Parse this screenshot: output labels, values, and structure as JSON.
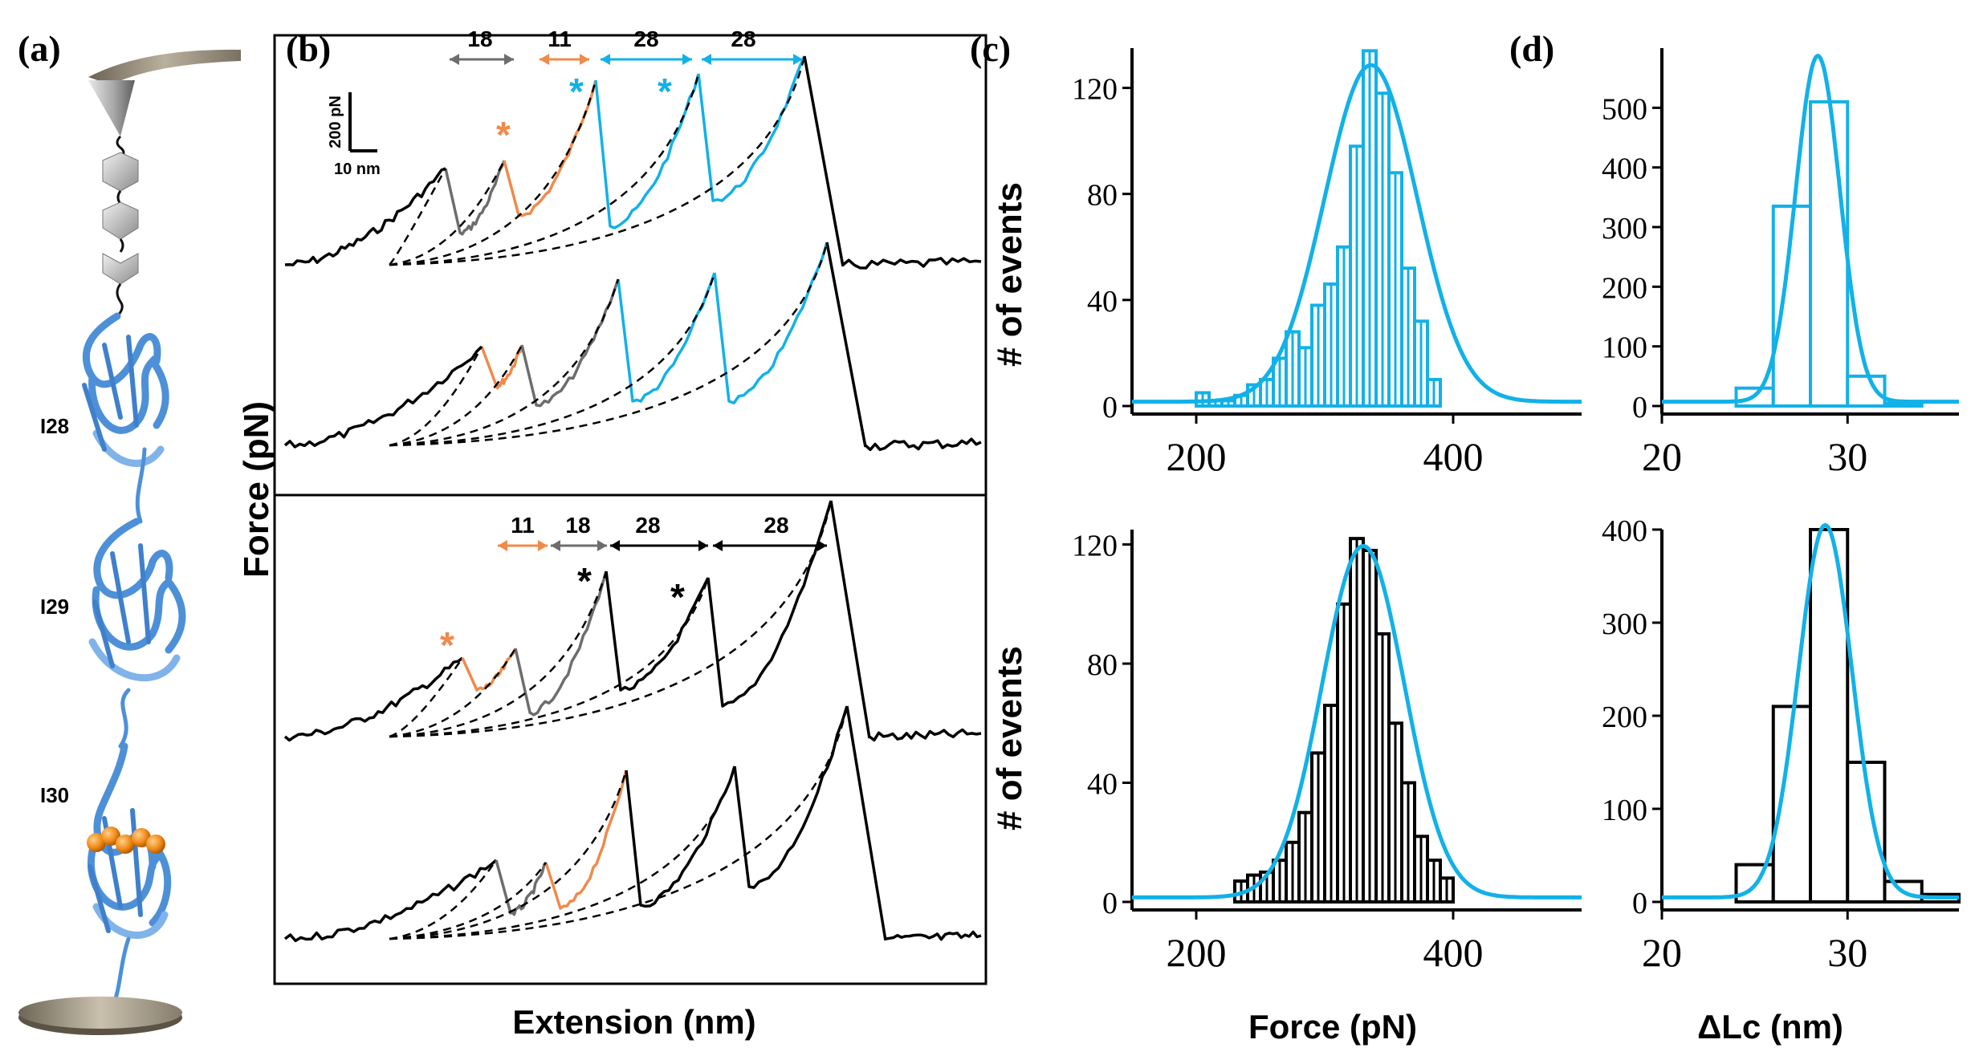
{
  "figure": {
    "panel_labels": [
      "(a)",
      "(b)",
      "(c)",
      "(d)"
    ],
    "panel_a": {
      "domains": [
        "I28",
        "I29",
        "I30"
      ]
    },
    "panel_b": {
      "y_label": "Force (pN)",
      "x_label": "Extension (nm)",
      "scale_force": "200 pN",
      "scale_length": "10 nm",
      "top_increments": [
        "18",
        "11",
        "28",
        "28"
      ],
      "bottom_increments": [
        "11",
        "18",
        "28",
        "28"
      ],
      "marker": "*",
      "colors": {
        "gray": "#6d6d6d",
        "orange": "#f08a4b",
        "blue": "#12b1e8",
        "black": "#000000"
      }
    },
    "panel_c": {
      "x_label": "Force (pN)",
      "y_label": "# of events"
    },
    "panel_d": {
      "x_label": "ΔLc (nm)"
    }
  },
  "chart_data": [
    {
      "id": "c-top",
      "type": "bar",
      "title": "",
      "xlabel": "",
      "ylabel": "# of events",
      "xlim": [
        150,
        500
      ],
      "ylim": [
        0,
        135
      ],
      "xticks": [
        200,
        400
      ],
      "yticks": [
        0,
        40,
        80,
        120
      ],
      "bin_width": 10,
      "categories": [
        205,
        215,
        225,
        235,
        245,
        255,
        265,
        275,
        285,
        295,
        305,
        315,
        325,
        335,
        345,
        355,
        365,
        375,
        385
      ],
      "values": [
        5,
        2,
        2,
        4,
        8,
        10,
        18,
        28,
        22,
        38,
        46,
        60,
        98,
        134,
        118,
        88,
        52,
        32,
        10
      ],
      "fit": {
        "kind": "gaussian",
        "peak": 127,
        "mean": 336,
        "sd": 36
      },
      "bar_color": "#12b1e8",
      "fit_color": "#12b1e8",
      "hatched": true
    },
    {
      "id": "c-bottom",
      "type": "bar",
      "title": "",
      "xlabel": "Force (pN)",
      "ylabel": "# of events",
      "xlim": [
        150,
        500
      ],
      "ylim": [
        0,
        125
      ],
      "xticks": [
        200,
        400
      ],
      "yticks": [
        0,
        40,
        80,
        120
      ],
      "bin_width": 10,
      "categories": [
        235,
        245,
        255,
        265,
        275,
        285,
        295,
        305,
        315,
        325,
        335,
        345,
        355,
        365,
        375,
        385,
        395
      ],
      "values": [
        7,
        9,
        10,
        14,
        20,
        30,
        50,
        66,
        100,
        122,
        118,
        90,
        60,
        40,
        22,
        14,
        8
      ],
      "fit": {
        "kind": "gaussian",
        "peak": 118,
        "mean": 330,
        "sd": 32
      },
      "bar_color": "#000000",
      "fit_color": "#12b1e8",
      "hatched": true
    },
    {
      "id": "d-top",
      "type": "bar",
      "title": "",
      "xlabel": "",
      "ylabel": "",
      "xlim": [
        20,
        36
      ],
      "ylim": [
        0,
        600
      ],
      "xticks": [
        20,
        30
      ],
      "yticks": [
        0,
        100,
        200,
        300,
        400,
        500
      ],
      "bin_width": 2,
      "categories": [
        25,
        27,
        29,
        31,
        33
      ],
      "values": [
        30,
        335,
        510,
        50,
        5
      ],
      "fit": {
        "kind": "gaussian",
        "peak": 580,
        "mean": 28.4,
        "sd": 1.2
      },
      "bar_color": "#12b1e8",
      "fit_color": "#12b1e8",
      "hatched": false
    },
    {
      "id": "d-bottom",
      "type": "bar",
      "title": "",
      "xlabel": "ΔLc (nm)",
      "ylabel": "",
      "xlim": [
        20,
        36
      ],
      "ylim": [
        0,
        400
      ],
      "xticks": [
        20,
        30
      ],
      "yticks": [
        0,
        100,
        200,
        300,
        400
      ],
      "bin_width": 2,
      "categories": [
        25,
        27,
        29,
        31,
        33,
        35
      ],
      "values": [
        40,
        210,
        400,
        150,
        22,
        8
      ],
      "fit": {
        "kind": "gaussian",
        "peak": 400,
        "mean": 28.8,
        "sd": 1.45
      },
      "bar_color": "#000000",
      "fit_color": "#12b1e8",
      "hatched": false
    }
  ]
}
